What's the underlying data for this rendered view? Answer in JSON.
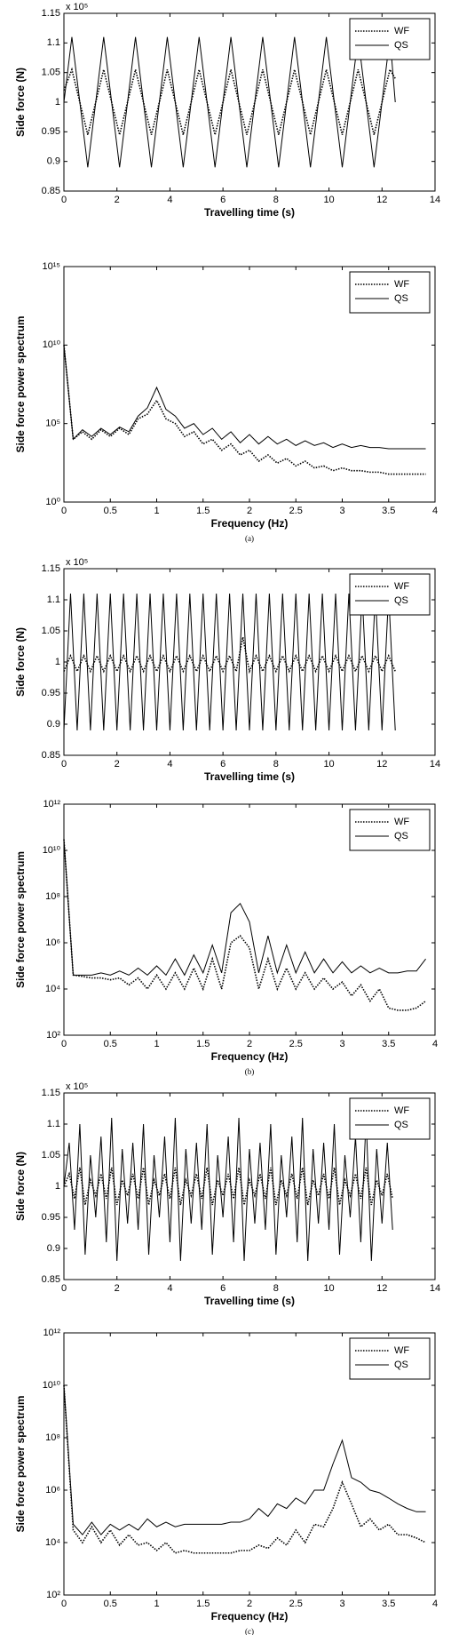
{
  "chart_data": [
    {
      "type": "line",
      "xlabel": "Travelling time (s)",
      "ylabel": "Side force (N)",
      "annotation": "x 10⁵",
      "xlim": [
        0,
        14
      ],
      "xticks": [
        0,
        2,
        4,
        6,
        8,
        10,
        12,
        14
      ],
      "ylim": [
        0.85,
        1.15
      ],
      "yticks": [
        0.85,
        0.9,
        0.95,
        1,
        1.05,
        1.1,
        1.15
      ],
      "log": false,
      "legend": "upper right",
      "x": [
        0,
        0.3,
        0.9,
        1.5,
        2.1,
        2.7,
        3.3,
        3.9,
        4.5,
        5.1,
        5.7,
        6.3,
        6.9,
        7.5,
        8.1,
        8.7,
        9.3,
        9.9,
        10.5,
        11.1,
        11.7,
        12.3,
        12.5
      ],
      "series": [
        {
          "name": "WF",
          "color": "#000000",
          "line_style": "dotted",
          "values": [
            1.02,
            1.055,
            0.945,
            1.055,
            0.945,
            1.055,
            0.945,
            1.055,
            0.945,
            1.055,
            0.945,
            1.055,
            0.945,
            1.055,
            0.945,
            1.055,
            0.945,
            1.055,
            0.945,
            1.055,
            0.945,
            1.055,
            1.04
          ]
        },
        {
          "name": "QS",
          "color": "#000000",
          "line_style": "solid",
          "values": [
            1.0,
            1.11,
            0.89,
            1.11,
            0.89,
            1.11,
            0.89,
            1.11,
            0.89,
            1.11,
            0.89,
            1.11,
            0.89,
            1.11,
            0.89,
            1.11,
            0.89,
            1.11,
            0.89,
            1.11,
            0.89,
            1.11,
            1.0
          ]
        }
      ]
    },
    {
      "type": "line",
      "xlabel": "Frequency (Hz)",
      "ylabel": "Side force power spectrum",
      "caption": "(a)",
      "xlim": [
        0,
        4
      ],
      "xticks": [
        0,
        0.5,
        1,
        1.5,
        2,
        2.5,
        3,
        3.5,
        4
      ],
      "ylim": [
        1,
        1000000000000000.0
      ],
      "yticks": [
        {
          "value": 1,
          "label": "10⁰"
        },
        {
          "value": 100000,
          "label": "10⁵"
        },
        {
          "value": 10000000000,
          "label": "10¹⁰"
        },
        {
          "value": 1000000000000000.0,
          "label": "10¹⁵"
        }
      ],
      "log": true,
      "legend": "upper right",
      "x": [
        0,
        0.1,
        0.2,
        0.3,
        0.4,
        0.5,
        0.6,
        0.7,
        0.8,
        0.9,
        1,
        1.1,
        1.2,
        1.3,
        1.4,
        1.5,
        1.6,
        1.7,
        1.8,
        1.9,
        2,
        2.1,
        2.2,
        2.3,
        2.4,
        2.5,
        2.6,
        2.7,
        2.8,
        2.9,
        3,
        3.1,
        3.2,
        3.3,
        3.4,
        3.5,
        3.6,
        3.7,
        3.8,
        3.9
      ],
      "series": [
        {
          "name": "WF",
          "color": "#000000",
          "line_style": "dotted",
          "values": [
            10000000000.0,
            10000.0,
            30000.0,
            10000.0,
            40000.0,
            15000.0,
            50000.0,
            20000.0,
            200000.0,
            400000.0,
            3000000.0,
            200000.0,
            100000.0,
            15000.0,
            30000.0,
            5000.0,
            10000.0,
            2000.0,
            5000.0,
            1000.0,
            2000.0,
            400.0,
            1000.0,
            300.0,
            600.0,
            200.0,
            400.0,
            150.0,
            200.0,
            100.0,
            150.0,
            100.0,
            100.0,
            80,
            80,
            60,
            60,
            60,
            60,
            60
          ]
        },
        {
          "name": "QS",
          "color": "#000000",
          "line_style": "solid",
          "values": [
            10000000000.0,
            10000.0,
            40000.0,
            15000.0,
            50000.0,
            20000.0,
            60000.0,
            30000.0,
            300000.0,
            1000000.0,
            20000000.0,
            800000.0,
            300000.0,
            50000.0,
            100000.0,
            20000.0,
            50000.0,
            10000.0,
            30000.0,
            6000.0,
            20000.0,
            5000.0,
            15000.0,
            5000.0,
            10000.0,
            4000.0,
            8000.0,
            4000.0,
            6000.0,
            3000.0,
            5000.0,
            3000.0,
            4000.0,
            3000.0,
            3000.0,
            2500.0,
            2500.0,
            2500.0,
            2500.0,
            2500.0
          ]
        }
      ]
    },
    {
      "type": "line",
      "xlabel": "Travelling time (s)",
      "ylabel": "Side force (N)",
      "annotation": "x 10⁵",
      "xlim": [
        0,
        14
      ],
      "xticks": [
        0,
        2,
        4,
        6,
        8,
        10,
        12,
        14
      ],
      "ylim": [
        0.85,
        1.15
      ],
      "yticks": [
        0.85,
        0.9,
        0.95,
        1,
        1.05,
        1.1,
        1.15
      ],
      "log": false,
      "legend": "upper right",
      "x": [
        0,
        0.25,
        0.5,
        0.75,
        1,
        1.25,
        1.5,
        1.75,
        2,
        2.25,
        2.5,
        2.75,
        3,
        3.25,
        3.5,
        3.75,
        4,
        4.25,
        4.5,
        4.75,
        5,
        5.25,
        5.5,
        5.75,
        6,
        6.25,
        6.5,
        6.75,
        7,
        7.25,
        7.5,
        7.75,
        8,
        8.25,
        8.5,
        8.75,
        9,
        9.25,
        9.5,
        9.75,
        10,
        10.25,
        10.5,
        10.75,
        11,
        11.25,
        11.5,
        11.75,
        12,
        12.25,
        12.5
      ],
      "series": [
        {
          "name": "WF",
          "color": "#000000",
          "line_style": "dotted",
          "values": [
            0.985,
            1.01,
            0.985,
            1.01,
            0.985,
            1.01,
            0.985,
            1.01,
            0.985,
            1.01,
            0.985,
            1.01,
            0.985,
            1.01,
            0.985,
            1.01,
            0.985,
            1.01,
            0.985,
            1.01,
            0.985,
            1.01,
            0.985,
            1.01,
            0.985,
            1.01,
            0.985,
            1.04,
            0.985,
            1.01,
            0.985,
            1.01,
            0.985,
            1.01,
            0.985,
            1.01,
            0.985,
            1.01,
            0.985,
            1.01,
            0.985,
            1.01,
            0.985,
            1.01,
            0.985,
            1.01,
            0.985,
            1.01,
            0.985,
            1.01,
            0.985
          ]
        },
        {
          "name": "QS",
          "color": "#000000",
          "line_style": "solid",
          "values": [
            0.89,
            1.11,
            0.89,
            1.11,
            0.89,
            1.11,
            0.89,
            1.11,
            0.89,
            1.11,
            0.89,
            1.11,
            0.89,
            1.11,
            0.89,
            1.11,
            0.89,
            1.11,
            0.89,
            1.11,
            0.89,
            1.11,
            0.89,
            1.11,
            0.89,
            1.11,
            0.89,
            1.11,
            0.89,
            1.11,
            0.89,
            1.11,
            0.89,
            1.11,
            0.89,
            1.11,
            0.89,
            1.11,
            0.89,
            1.11,
            0.89,
            1.11,
            0.89,
            1.11,
            0.89,
            1.11,
            0.89,
            1.11,
            0.89,
            1.11,
            0.89
          ]
        }
      ]
    },
    {
      "type": "line",
      "xlabel": "Frequency (Hz)",
      "ylabel": "Side force power spectrum",
      "caption": "(b)",
      "xlim": [
        0,
        4
      ],
      "xticks": [
        0,
        0.5,
        1,
        1.5,
        2,
        2.5,
        3,
        3.5,
        4
      ],
      "ylim": [
        100,
        1000000000000.0
      ],
      "yticks": [
        {
          "value": 100,
          "label": "10²"
        },
        {
          "value": 10000,
          "label": "10⁴"
        },
        {
          "value": 1000000,
          "label": "10⁶"
        },
        {
          "value": 100000000,
          "label": "10⁸"
        },
        {
          "value": 10000000000,
          "label": "10¹⁰"
        },
        {
          "value": 1000000000000.0,
          "label": "10¹²"
        }
      ],
      "log": true,
      "legend": "upper right",
      "x": [
        0,
        0.1,
        0.2,
        0.3,
        0.4,
        0.5,
        0.6,
        0.7,
        0.8,
        0.9,
        1,
        1.1,
        1.2,
        1.3,
        1.4,
        1.5,
        1.6,
        1.7,
        1.8,
        1.9,
        2,
        2.1,
        2.2,
        2.3,
        2.4,
        2.5,
        2.6,
        2.7,
        2.8,
        2.9,
        3,
        3.1,
        3.2,
        3.3,
        3.4,
        3.5,
        3.6,
        3.7,
        3.8,
        3.9
      ],
      "series": [
        {
          "name": "WF",
          "color": "#000000",
          "line_style": "dotted",
          "values": [
            30000000000.0,
            40000.0,
            35000.0,
            30000.0,
            30000.0,
            25000.0,
            30000.0,
            15000.0,
            30000.0,
            10000.0,
            40000.0,
            10000.0,
            50000.0,
            10000.0,
            80000.0,
            10000.0,
            200000.0,
            10000.0,
            1000000.0,
            2000000.0,
            600000.0,
            10000.0,
            200000.0,
            10000.0,
            80000.0,
            10000.0,
            50000.0,
            10000.0,
            30000.0,
            10000.0,
            20000.0,
            5000.0,
            15000.0,
            3000.0,
            10000.0,
            1500.0,
            1200.0,
            1200.0,
            1500.0,
            3000.0
          ]
        },
        {
          "name": "QS",
          "color": "#000000",
          "line_style": "solid",
          "values": [
            30000000000.0,
            40000.0,
            40000.0,
            40000.0,
            50000.0,
            40000.0,
            60000.0,
            40000.0,
            80000.0,
            40000.0,
            100000.0,
            40000.0,
            200000.0,
            40000.0,
            300000.0,
            50000.0,
            800000.0,
            50000.0,
            20000000.0,
            50000000.0,
            8000000.0,
            50000.0,
            2000000.0,
            50000.0,
            800000.0,
            50000.0,
            400000.0,
            50000.0,
            200000.0,
            50000.0,
            150000.0,
            50000.0,
            100000.0,
            50000.0,
            80000.0,
            50000.0,
            50000.0,
            60000.0,
            60000.0,
            200000.0
          ]
        }
      ]
    },
    {
      "type": "line",
      "xlabel": "Travelling time (s)",
      "ylabel": "Side force (N)",
      "annotation": "x 10⁵",
      "xlim": [
        0,
        14
      ],
      "xticks": [
        0,
        2,
        4,
        6,
        8,
        10,
        12,
        14
      ],
      "ylim": [
        0.85,
        1.15
      ],
      "yticks": [
        0.85,
        0.9,
        0.95,
        1,
        1.05,
        1.1,
        1.15
      ],
      "log": false,
      "legend": "upper right",
      "x": [
        0,
        0.2,
        0.4,
        0.6,
        0.8,
        1,
        1.2,
        1.4,
        1.6,
        1.8,
        2,
        2.2,
        2.4,
        2.6,
        2.8,
        3,
        3.2,
        3.4,
        3.6,
        3.8,
        4,
        4.2,
        4.4,
        4.6,
        4.8,
        5,
        5.2,
        5.4,
        5.6,
        5.8,
        6,
        6.2,
        6.4,
        6.6,
        6.8,
        7,
        7.2,
        7.4,
        7.6,
        7.8,
        8,
        8.2,
        8.4,
        8.6,
        8.8,
        9,
        9.2,
        9.4,
        9.6,
        9.8,
        10,
        10.2,
        10.4,
        10.6,
        10.8,
        11,
        11.2,
        11.4,
        11.6,
        11.8,
        12,
        12.2,
        12.4
      ],
      "series": [
        {
          "name": "WF",
          "color": "#000000",
          "line_style": "dotted",
          "values": [
            1.0,
            1.02,
            0.98,
            1.03,
            0.97,
            1.01,
            0.985,
            1.02,
            0.98,
            1.03,
            0.97,
            1.01,
            0.985,
            1.02,
            0.98,
            1.03,
            0.97,
            1.01,
            0.985,
            1.02,
            0.98,
            1.03,
            0.97,
            1.01,
            0.985,
            1.02,
            0.98,
            1.03,
            0.97,
            1.01,
            0.985,
            1.02,
            0.98,
            1.03,
            0.97,
            1.01,
            0.985,
            1.02,
            0.98,
            1.03,
            0.97,
            1.01,
            0.985,
            1.02,
            0.98,
            1.03,
            0.97,
            1.01,
            0.985,
            1.02,
            0.98,
            1.03,
            0.97,
            1.01,
            0.985,
            1.02,
            0.98,
            1.03,
            0.97,
            1.01,
            0.985,
            1.02,
            0.98
          ]
        },
        {
          "name": "QS",
          "color": "#000000",
          "line_style": "solid",
          "values": [
            1.0,
            1.07,
            0.93,
            1.1,
            0.89,
            1.05,
            0.95,
            1.08,
            0.91,
            1.11,
            0.88,
            1.06,
            0.94,
            1.07,
            0.93,
            1.1,
            0.89,
            1.05,
            0.95,
            1.08,
            0.91,
            1.11,
            0.88,
            1.06,
            0.94,
            1.07,
            0.93,
            1.1,
            0.89,
            1.05,
            0.95,
            1.08,
            0.91,
            1.11,
            0.88,
            1.06,
            0.94,
            1.07,
            0.93,
            1.1,
            0.89,
            1.05,
            0.95,
            1.08,
            0.91,
            1.11,
            0.88,
            1.06,
            0.94,
            1.07,
            0.93,
            1.1,
            0.89,
            1.05,
            0.95,
            1.08,
            0.91,
            1.11,
            0.88,
            1.06,
            0.94,
            1.07,
            0.93
          ]
        }
      ]
    },
    {
      "type": "line",
      "xlabel": "Frequency (Hz)",
      "ylabel": "Side force power spectrum",
      "caption": "(c)",
      "xlim": [
        0,
        4
      ],
      "xticks": [
        0,
        0.5,
        1,
        1.5,
        2,
        2.5,
        3,
        3.5,
        4
      ],
      "ylim": [
        100,
        1000000000000.0
      ],
      "yticks": [
        {
          "value": 100,
          "label": "10²"
        },
        {
          "value": 10000,
          "label": "10⁴"
        },
        {
          "value": 1000000,
          "label": "10⁶"
        },
        {
          "value": 100000000,
          "label": "10⁸"
        },
        {
          "value": 10000000000,
          "label": "10¹⁰"
        },
        {
          "value": 1000000000000.0,
          "label": "10¹²"
        }
      ],
      "log": true,
      "legend": "upper right",
      "x": [
        0,
        0.1,
        0.2,
        0.3,
        0.4,
        0.5,
        0.6,
        0.7,
        0.8,
        0.9,
        1,
        1.1,
        1.2,
        1.3,
        1.4,
        1.5,
        1.6,
        1.7,
        1.8,
        1.9,
        2,
        2.1,
        2.2,
        2.3,
        2.4,
        2.5,
        2.6,
        2.7,
        2.8,
        2.9,
        3,
        3.1,
        3.2,
        3.3,
        3.4,
        3.5,
        3.6,
        3.7,
        3.8,
        3.9
      ],
      "series": [
        {
          "name": "WF",
          "color": "#000000",
          "line_style": "dotted",
          "values": [
            10000000000.0,
            30000.0,
            10000.0,
            40000.0,
            10000.0,
            30000.0,
            8000.0,
            20000.0,
            8000.0,
            10000.0,
            5000.0,
            10000.0,
            4000.0,
            5000.0,
            4000.0,
            4000.0,
            4000.0,
            4000.0,
            4000.0,
            5000.0,
            5000.0,
            8000.0,
            6000.0,
            15000.0,
            8000.0,
            30000.0,
            10000.0,
            50000.0,
            40000.0,
            200000.0,
            2000000.0,
            300000.0,
            40000.0,
            80000.0,
            30000.0,
            50000.0,
            20000.0,
            20000.0,
            15000.0,
            10000.0
          ]
        },
        {
          "name": "QS",
          "color": "#000000",
          "line_style": "solid",
          "values": [
            10000000000.0,
            50000.0,
            20000.0,
            60000.0,
            20000.0,
            50000.0,
            30000.0,
            50000.0,
            30000.0,
            80000.0,
            40000.0,
            60000.0,
            40000.0,
            50000.0,
            50000.0,
            50000.0,
            50000.0,
            50000.0,
            60000.0,
            60000.0,
            80000.0,
            200000.0,
            100000.0,
            300000.0,
            200000.0,
            500000.0,
            300000.0,
            1000000.0,
            1000000.0,
            10000000.0,
            80000000.0,
            3000000.0,
            2000000.0,
            1000000.0,
            800000.0,
            500000.0,
            300000.0,
            200000.0,
            150000.0,
            150000.0
          ]
        }
      ]
    }
  ]
}
